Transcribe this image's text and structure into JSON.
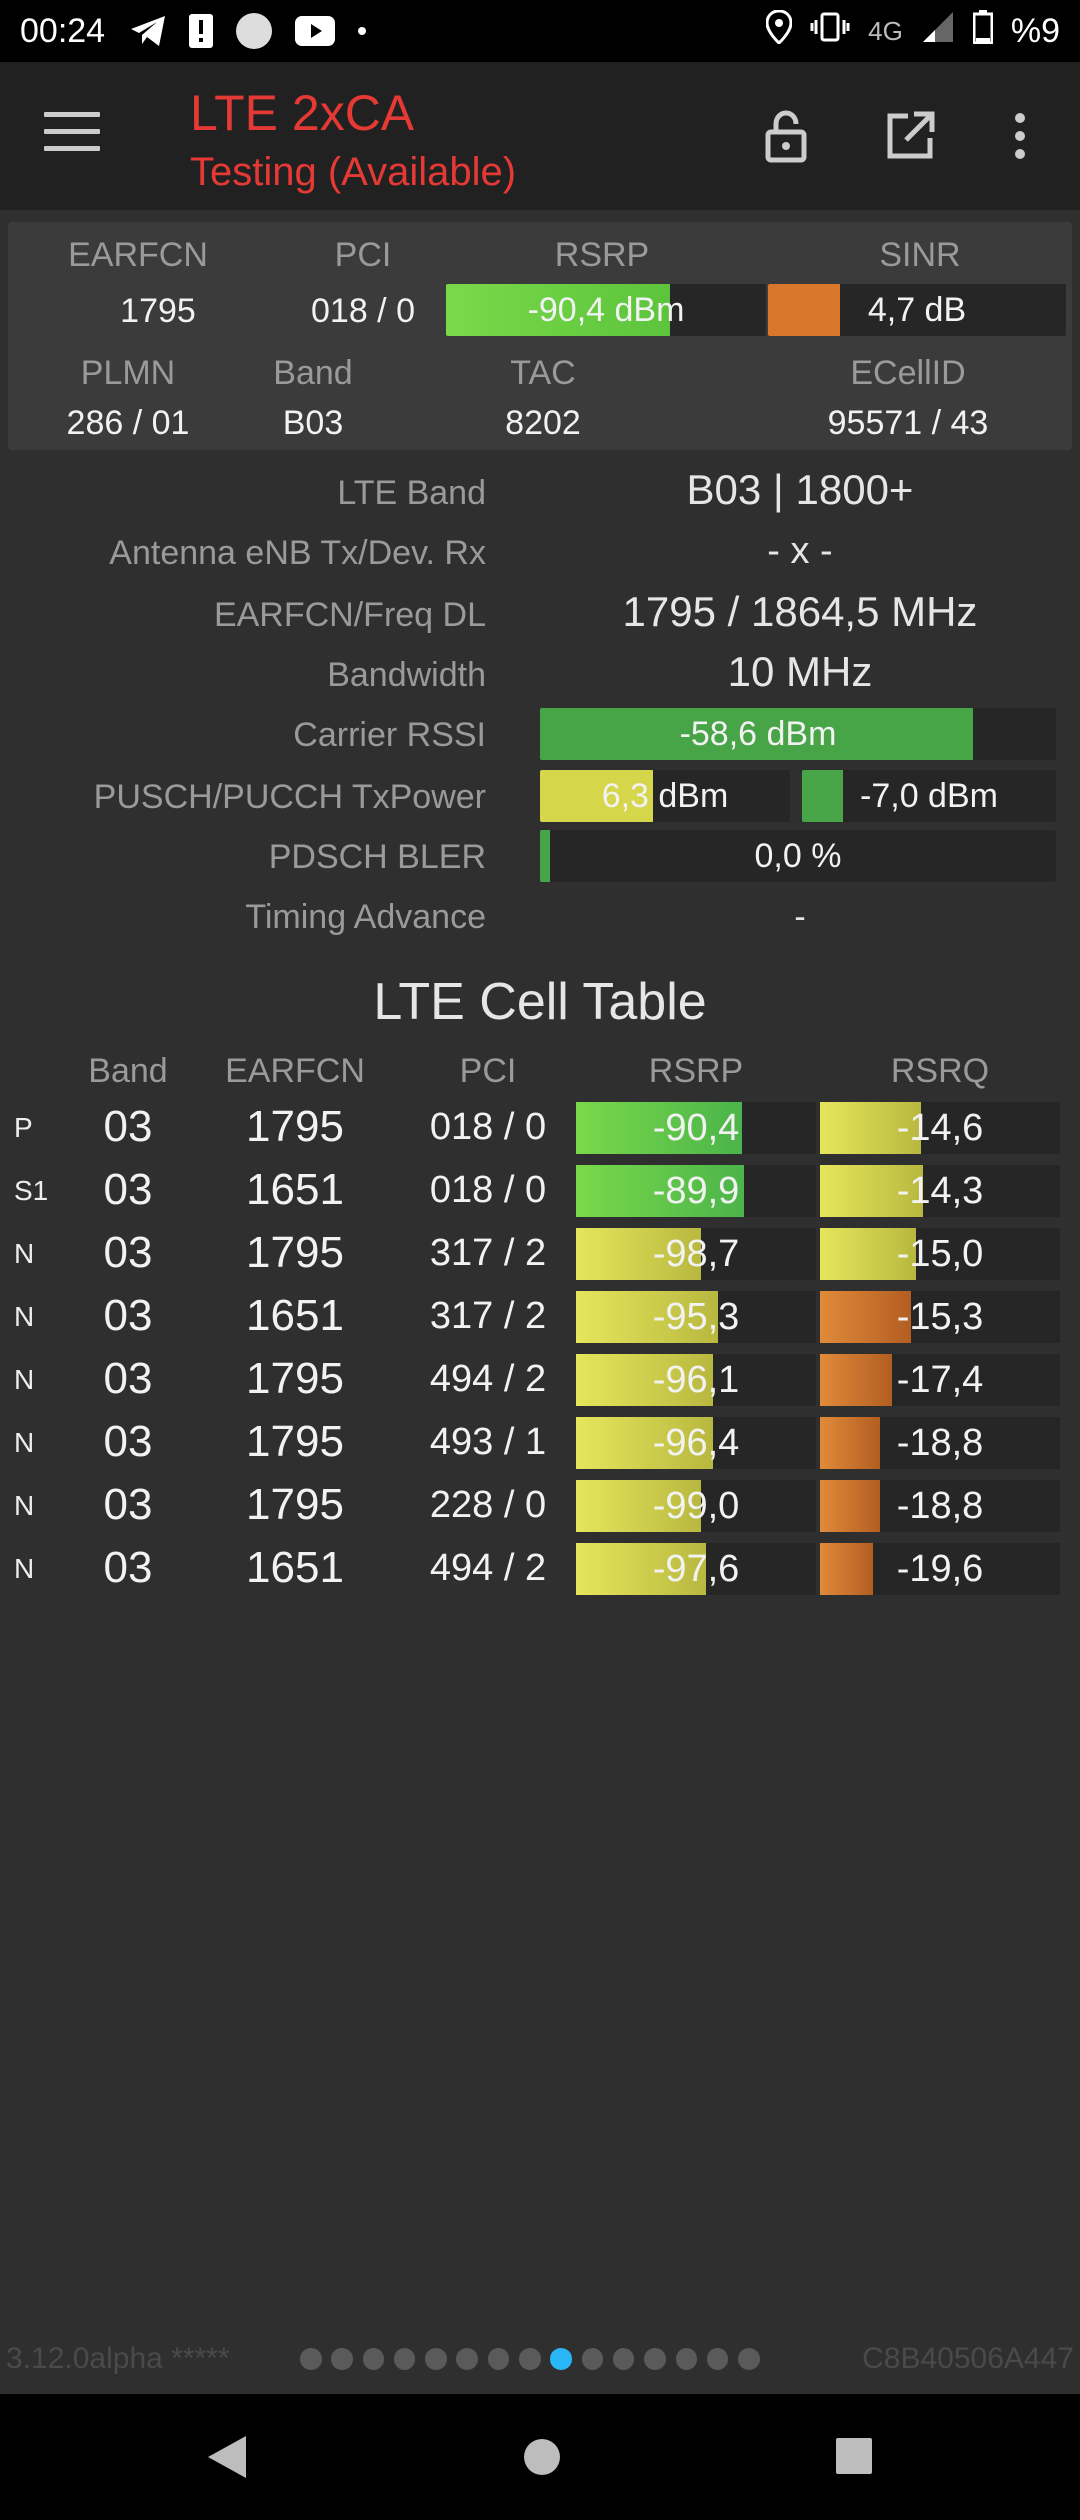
{
  "status_bar": {
    "time": "00:24",
    "network": "4G",
    "battery": "%9",
    "icons": [
      "telegram-icon",
      "alert-icon",
      "circle-icon",
      "youtube-icon",
      "dot-icon",
      "location-icon",
      "vibrate-icon",
      "signal-icon",
      "battery-icon"
    ]
  },
  "app_bar": {
    "title": "LTE 2xCA",
    "subtitle": "Testing (Available)",
    "icons": [
      "menu-icon",
      "lock-icon",
      "open-external-icon",
      "more-vert-icon"
    ]
  },
  "summary": {
    "headers": {
      "earfcn": "EARFCN",
      "pci": "PCI",
      "rsrp": "RSRP",
      "sinr": "SINR",
      "plmn": "PLMN",
      "band": "Band",
      "tac": "TAC",
      "ecellid": "ECellID"
    },
    "earfcn": "1795",
    "pci": "018 / 0",
    "rsrp": {
      "text": "-90,4 dBm",
      "fill": 0.7,
      "color": "#5cc43c"
    },
    "sinr": {
      "text": "4,7 dB",
      "fill": 0.24,
      "color": "#d9772d"
    },
    "plmn": "286 / 01",
    "band": "B03",
    "tac": "8202",
    "ecellid": "95571 / 43"
  },
  "details": {
    "lte_band": {
      "label": "LTE Band",
      "value": "B03 | 1800+"
    },
    "antenna": {
      "label": "Antenna eNB Tx/Dev. Rx",
      "value": "- x -"
    },
    "earfcn_freq": {
      "label": "EARFCN/Freq DL",
      "value": "1795 / 1864,5 MHz"
    },
    "bandwidth": {
      "label": "Bandwidth",
      "value": "10 MHz"
    },
    "carrier_rssi": {
      "label": "Carrier RSSI",
      "text": "-58,6 dBm",
      "fill": 0.84,
      "color": "#47a447"
    },
    "txpower": {
      "label": "PUSCH/PUCCH TxPower",
      "pusch_text": "6,3 dBm",
      "pusch_fill": 0.45,
      "pusch_color": "#d6d64a",
      "pucch_text": "-7,0 dBm",
      "pucch_fill": 0.16,
      "pucch_color": "#47a447"
    },
    "bler": {
      "label": "PDSCH BLER",
      "text": "0,0 %",
      "fill": 0.02,
      "color": "#47a447"
    },
    "timing_advance": {
      "label": "Timing Advance",
      "value": "-"
    }
  },
  "cell_table": {
    "title": "LTE Cell Table",
    "headers": [
      "Band",
      "EARFCN",
      "PCI",
      "RSRP",
      "RSRQ"
    ],
    "rows": [
      {
        "type": "P",
        "band": "03",
        "earfcn": "1795",
        "pci": "018 / 0",
        "rsrp": "-90,4",
        "rsrp_fill": 0.69,
        "rsrp_color": "green",
        "rsrq": "-14,6",
        "rsrq_fill": 0.42,
        "rsrq_color": "yellow"
      },
      {
        "type": "S1",
        "band": "03",
        "earfcn": "1651",
        "pci": "018 / 0",
        "rsrp": "-89,9",
        "rsrp_fill": 0.7,
        "rsrp_color": "green",
        "rsrq": "-14,3",
        "rsrq_fill": 0.43,
        "rsrq_color": "yellow"
      },
      {
        "type": "N",
        "band": "03",
        "earfcn": "1795",
        "pci": "317 / 2",
        "rsrp": "-98,7",
        "rsrp_fill": 0.52,
        "rsrp_color": "yellow",
        "rsrq": "-15,0",
        "rsrq_fill": 0.4,
        "rsrq_color": "yellow"
      },
      {
        "type": "N",
        "band": "03",
        "earfcn": "1651",
        "pci": "317 / 2",
        "rsrp": "-95,3",
        "rsrp_fill": 0.59,
        "rsrp_color": "yellow",
        "rsrq": "-15,3",
        "rsrq_fill": 0.38,
        "rsrq_color": "orange"
      },
      {
        "type": "N",
        "band": "03",
        "earfcn": "1795",
        "pci": "494 / 2",
        "rsrp": "-96,1",
        "rsrp_fill": 0.57,
        "rsrp_color": "yellow",
        "rsrq": "-17,4",
        "rsrq_fill": 0.3,
        "rsrq_color": "orange"
      },
      {
        "type": "N",
        "band": "03",
        "earfcn": "1795",
        "pci": "493 / 1",
        "rsrp": "-96,4",
        "rsrp_fill": 0.57,
        "rsrp_color": "yellow",
        "rsrq": "-18,8",
        "rsrq_fill": 0.25,
        "rsrq_color": "orange"
      },
      {
        "type": "N",
        "band": "03",
        "earfcn": "1795",
        "pci": "228 / 0",
        "rsrp": "-99,0",
        "rsrp_fill": 0.52,
        "rsrp_color": "yellow",
        "rsrq": "-18,8",
        "rsrq_fill": 0.25,
        "rsrq_color": "orange"
      },
      {
        "type": "N",
        "band": "03",
        "earfcn": "1651",
        "pci": "494 / 2",
        "rsrp": "-97,6",
        "rsrp_fill": 0.54,
        "rsrp_color": "yellow",
        "rsrq": "-19,6",
        "rsrq_fill": 0.22,
        "rsrq_color": "orange"
      }
    ]
  },
  "footer": {
    "version": "3.12.0alpha *****",
    "device_id": "C8B40506A447",
    "page_count": 15,
    "active_page": 8
  },
  "colors": {
    "green": "#5cc43c",
    "yellow": "#d8d84a",
    "orange": "#d9772d",
    "accent": "#e53935",
    "page_dot_active": "#29b6f6"
  },
  "nav_bar": {
    "icons": [
      "back-icon",
      "home-icon",
      "recents-icon"
    ]
  }
}
